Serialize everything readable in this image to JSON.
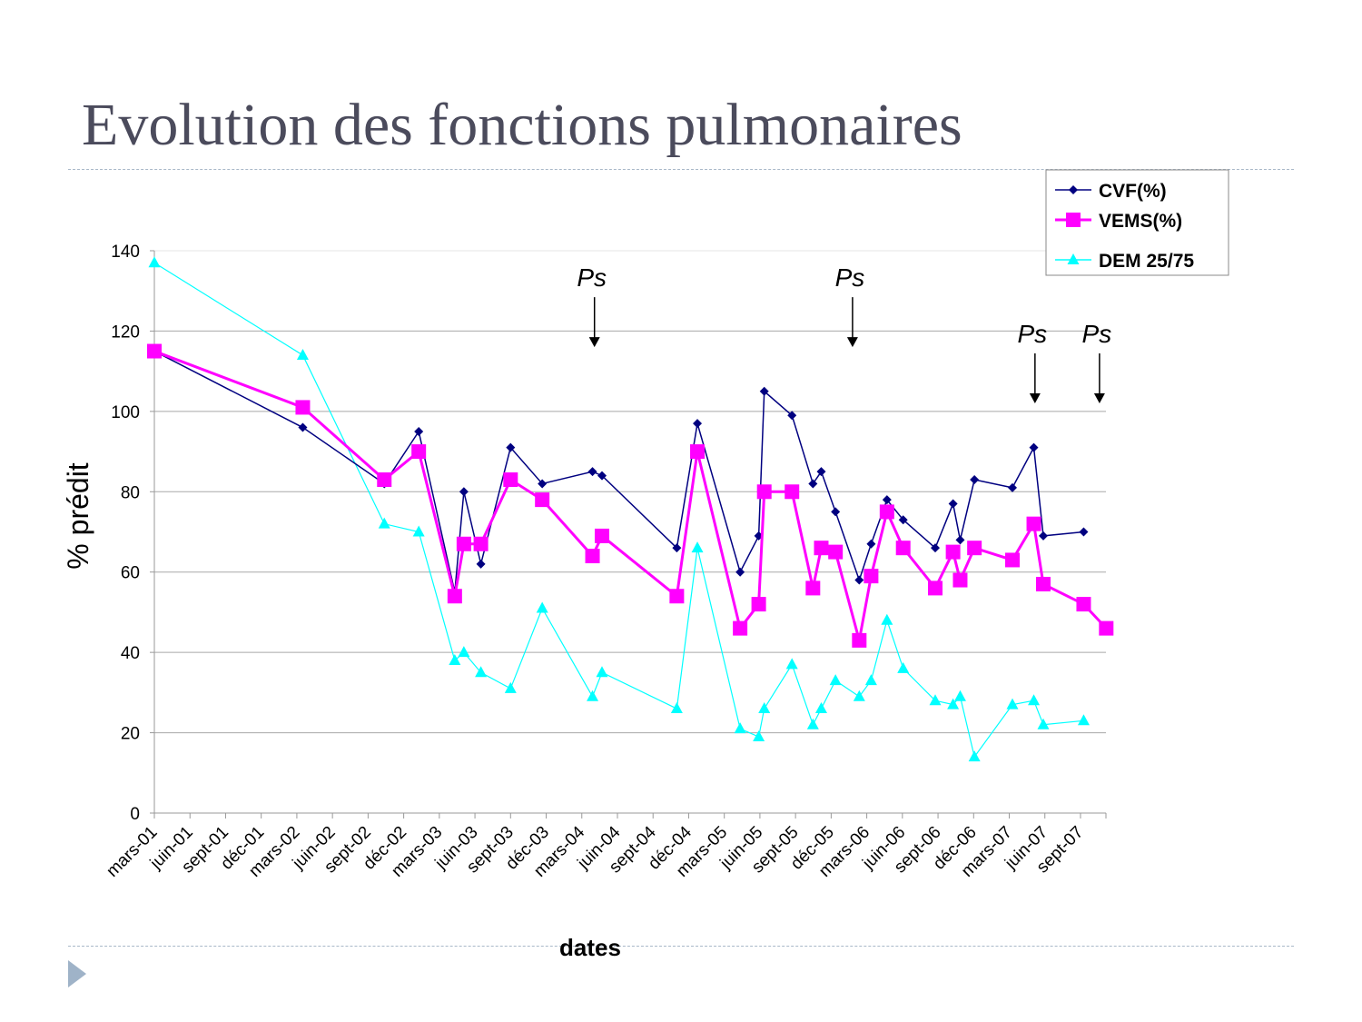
{
  "slide": {
    "title": "Evolution des fonctions pulmonaires"
  },
  "chart_data": {
    "type": "line",
    "title": "",
    "xlabel": "dates",
    "ylabel": "% prédit",
    "ylim": [
      0,
      140
    ],
    "yticks": [
      0,
      20,
      40,
      60,
      80,
      100,
      120,
      140
    ],
    "xlim": [
      "2001-03-01",
      "2007-11-10"
    ],
    "xtick_labels": [
      "mars-01",
      "juin-01",
      "sept-01",
      "déc-01",
      "mars-02",
      "juin-02",
      "sept-02",
      "déc-02",
      "mars-03",
      "juin-03",
      "sept-03",
      "déc-03",
      "mars-04",
      "juin-04",
      "sept-04",
      "déc-04",
      "mars-05",
      "juin-05",
      "sept-05",
      "déc-05",
      "mars-06",
      "juin-06",
      "sept-06",
      "déc-06",
      "mars-07",
      "juin-07",
      "sept-07"
    ],
    "grid": "horizontal",
    "legend_position": "top-right",
    "x": [
      "2001-03-01",
      "2002-03-16",
      "2002-10-12",
      "2003-01-09",
      "2003-04-10",
      "2003-05-03",
      "2003-06-16",
      "2003-09-01",
      "2003-11-21",
      "2004-03-28",
      "2004-04-22",
      "2004-11-01",
      "2004-12-23",
      "2005-04-11",
      "2005-05-28",
      "2005-06-12",
      "2005-08-22",
      "2005-10-15",
      "2005-11-06",
      "2005-12-12",
      "2006-02-12",
      "2006-03-12",
      "2006-04-22",
      "2006-06-03",
      "2006-08-24",
      "2006-10-09",
      "2006-10-27",
      "2006-12-03",
      "2007-03-09",
      "2007-05-03",
      "2007-05-27",
      "2007-09-09",
      "2007-11-06"
    ],
    "series": [
      {
        "name": "CVF(%)",
        "color": "#000080",
        "marker": "diamond",
        "values": [
          115,
          96,
          82,
          95,
          55,
          80,
          62,
          91,
          82,
          85,
          84,
          66,
          97,
          60,
          69,
          105,
          99,
          82,
          85,
          75,
          58,
          67,
          78,
          73,
          66,
          77,
          68,
          83,
          81,
          91,
          69,
          70,
          null
        ]
      },
      {
        "name": "VEMS(%)",
        "color": "#ff00ff",
        "marker": "square",
        "values": [
          115,
          101,
          83,
          90,
          54,
          67,
          67,
          83,
          78,
          64,
          69,
          54,
          90,
          46,
          52,
          80,
          80,
          56,
          66,
          65,
          43,
          59,
          75,
          66,
          56,
          65,
          58,
          66,
          63,
          72,
          57,
          52,
          46
        ]
      },
      {
        "name": "DEM 25/75",
        "color": "#00ffff",
        "marker": "triangle",
        "values": [
          137,
          114,
          72,
          70,
          38,
          40,
          35,
          31,
          51,
          29,
          35,
          26,
          66,
          21,
          19,
          26,
          37,
          22,
          26,
          33,
          29,
          33,
          48,
          36,
          28,
          27,
          29,
          14,
          27,
          28,
          22,
          23,
          null
        ]
      }
    ],
    "annotations": [
      {
        "text": "Ps",
        "x": "2004-04-03",
        "arrow_to": 116
      },
      {
        "text": "Ps",
        "x": "2006-01-25",
        "arrow_to": 116
      },
      {
        "text": "Ps",
        "x": "2007-05-06",
        "arrow_to": 102
      },
      {
        "text": "Ps",
        "x": "2007-10-19",
        "arrow_to": 102
      }
    ]
  }
}
